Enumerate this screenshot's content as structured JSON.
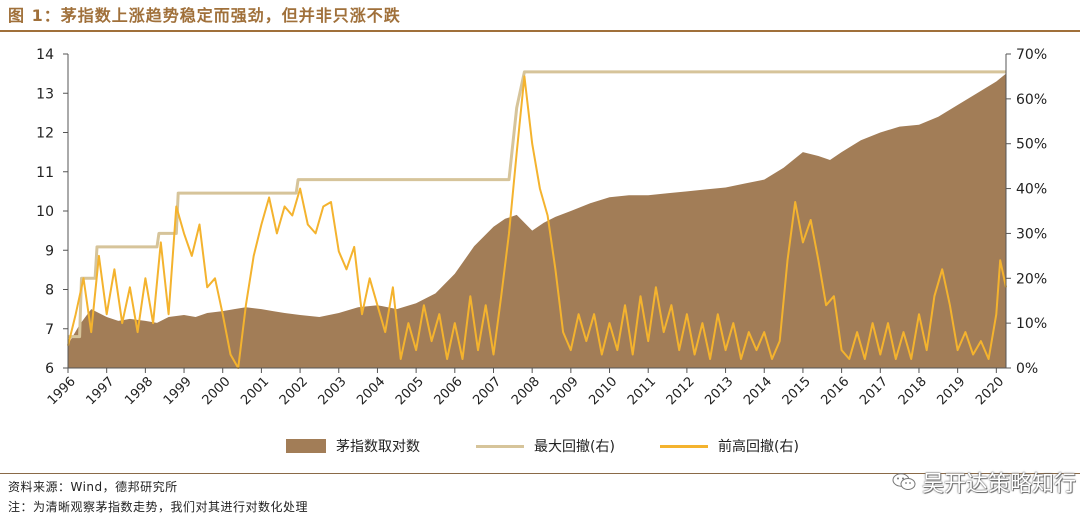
{
  "figure": {
    "title": "图 1：茅指数上涨趋势稳定而强劲，但并非只涨不跌"
  },
  "colors": {
    "accent": "#a0703a",
    "index_fill": "#a27d57",
    "max_drawdown": "#d6c49a",
    "prior_drawdown": "#f4b32e"
  },
  "chart_data": {
    "type": "area",
    "x_ticks": [
      "1996",
      "1997",
      "1998",
      "1999",
      "2000",
      "2001",
      "2002",
      "2003",
      "2004",
      "2005",
      "2006",
      "2007",
      "2008",
      "2009",
      "2010",
      "2011",
      "2012",
      "2013",
      "2014",
      "2015",
      "2016",
      "2017",
      "2018",
      "2019",
      "2020"
    ],
    "xlim": [
      1996.0,
      2020.25
    ],
    "left_axis": {
      "ylim": [
        6,
        14
      ],
      "ticks": [
        "6",
        "7",
        "8",
        "9",
        "10",
        "11",
        "12",
        "13",
        "14"
      ]
    },
    "right_axis": {
      "ylim": [
        0,
        70
      ],
      "ticks": [
        "0%",
        "10%",
        "20%",
        "30%",
        "40%",
        "50%",
        "60%",
        "70%"
      ]
    },
    "series": [
      {
        "name": "茅指数取对数",
        "type": "area",
        "axis": "left",
        "points": [
          [
            1996.0,
            6.6
          ],
          [
            1996.3,
            7.1
          ],
          [
            1996.6,
            7.5
          ],
          [
            1997.0,
            7.3
          ],
          [
            1997.3,
            7.2
          ],
          [
            1997.6,
            7.25
          ],
          [
            1998.0,
            7.2
          ],
          [
            1998.3,
            7.15
          ],
          [
            1998.6,
            7.3
          ],
          [
            1999.0,
            7.35
          ],
          [
            1999.3,
            7.3
          ],
          [
            1999.6,
            7.4
          ],
          [
            2000.0,
            7.45
          ],
          [
            2000.3,
            7.5
          ],
          [
            2000.6,
            7.55
          ],
          [
            2001.0,
            7.5
          ],
          [
            2001.3,
            7.45
          ],
          [
            2001.6,
            7.4
          ],
          [
            2002.0,
            7.35
          ],
          [
            2002.5,
            7.3
          ],
          [
            2003.0,
            7.4
          ],
          [
            2003.5,
            7.55
          ],
          [
            2004.0,
            7.6
          ],
          [
            2004.5,
            7.5
          ],
          [
            2005.0,
            7.65
          ],
          [
            2005.5,
            7.9
          ],
          [
            2006.0,
            8.4
          ],
          [
            2006.5,
            9.1
          ],
          [
            2007.0,
            9.6
          ],
          [
            2007.3,
            9.8
          ],
          [
            2007.6,
            9.9
          ],
          [
            2008.0,
            9.5
          ],
          [
            2008.3,
            9.7
          ],
          [
            2008.6,
            9.85
          ],
          [
            2009.0,
            10.0
          ],
          [
            2009.5,
            10.2
          ],
          [
            2010.0,
            10.35
          ],
          [
            2010.5,
            10.4
          ],
          [
            2011.0,
            10.4
          ],
          [
            2011.5,
            10.45
          ],
          [
            2012.0,
            10.5
          ],
          [
            2012.5,
            10.55
          ],
          [
            2013.0,
            10.6
          ],
          [
            2013.5,
            10.7
          ],
          [
            2014.0,
            10.8
          ],
          [
            2014.5,
            11.1
          ],
          [
            2015.0,
            11.5
          ],
          [
            2015.4,
            11.4
          ],
          [
            2015.7,
            11.3
          ],
          [
            2016.0,
            11.5
          ],
          [
            2016.5,
            11.8
          ],
          [
            2017.0,
            12.0
          ],
          [
            2017.5,
            12.15
          ],
          [
            2018.0,
            12.2
          ],
          [
            2018.5,
            12.4
          ],
          [
            2019.0,
            12.7
          ],
          [
            2019.5,
            13.0
          ],
          [
            2020.0,
            13.3
          ],
          [
            2020.25,
            13.5
          ]
        ]
      },
      {
        "name": "最大回撤(右)",
        "type": "line",
        "axis": "right",
        "points": [
          [
            1996.0,
            7
          ],
          [
            1996.3,
            7
          ],
          [
            1996.35,
            20
          ],
          [
            1996.7,
            20
          ],
          [
            1996.75,
            27
          ],
          [
            1998.3,
            27
          ],
          [
            1998.35,
            30
          ],
          [
            1998.8,
            30
          ],
          [
            1998.85,
            39
          ],
          [
            2001.9,
            39
          ],
          [
            2001.95,
            42
          ],
          [
            2007.4,
            42
          ],
          [
            2007.6,
            58
          ],
          [
            2007.8,
            66
          ],
          [
            2020.25,
            66
          ]
        ]
      },
      {
        "name": "前高回撤(右)",
        "type": "line",
        "axis": "right",
        "points": [
          [
            1996.0,
            5
          ],
          [
            1996.2,
            12
          ],
          [
            1996.4,
            20
          ],
          [
            1996.6,
            8
          ],
          [
            1996.8,
            25
          ],
          [
            1997.0,
            12
          ],
          [
            1997.2,
            22
          ],
          [
            1997.4,
            10
          ],
          [
            1997.6,
            18
          ],
          [
            1997.8,
            8
          ],
          [
            1998.0,
            20
          ],
          [
            1998.2,
            10
          ],
          [
            1998.4,
            28
          ],
          [
            1998.6,
            12
          ],
          [
            1998.8,
            36
          ],
          [
            1999.0,
            30
          ],
          [
            1999.2,
            25
          ],
          [
            1999.4,
            32
          ],
          [
            1999.6,
            18
          ],
          [
            1999.8,
            20
          ],
          [
            2000.0,
            12
          ],
          [
            2000.2,
            3
          ],
          [
            2000.4,
            0
          ],
          [
            2000.6,
            14
          ],
          [
            2000.8,
            25
          ],
          [
            2001.0,
            32
          ],
          [
            2001.2,
            38
          ],
          [
            2001.4,
            30
          ],
          [
            2001.6,
            36
          ],
          [
            2001.8,
            34
          ],
          [
            2002.0,
            40
          ],
          [
            2002.2,
            32
          ],
          [
            2002.4,
            30
          ],
          [
            2002.6,
            36
          ],
          [
            2002.8,
            37
          ],
          [
            2003.0,
            26
          ],
          [
            2003.2,
            22
          ],
          [
            2003.4,
            27
          ],
          [
            2003.6,
            12
          ],
          [
            2003.8,
            20
          ],
          [
            2004.0,
            14
          ],
          [
            2004.2,
            8
          ],
          [
            2004.4,
            18
          ],
          [
            2004.6,
            2
          ],
          [
            2004.8,
            10
          ],
          [
            2005.0,
            4
          ],
          [
            2005.2,
            14
          ],
          [
            2005.4,
            6
          ],
          [
            2005.6,
            12
          ],
          [
            2005.8,
            2
          ],
          [
            2006.0,
            10
          ],
          [
            2006.2,
            2
          ],
          [
            2006.4,
            16
          ],
          [
            2006.6,
            4
          ],
          [
            2006.8,
            14
          ],
          [
            2007.0,
            3
          ],
          [
            2007.2,
            16
          ],
          [
            2007.4,
            30
          ],
          [
            2007.6,
            48
          ],
          [
            2007.8,
            65
          ],
          [
            2008.0,
            50
          ],
          [
            2008.2,
            40
          ],
          [
            2008.4,
            34
          ],
          [
            2008.6,
            22
          ],
          [
            2008.8,
            8
          ],
          [
            2009.0,
            4
          ],
          [
            2009.2,
            12
          ],
          [
            2009.4,
            6
          ],
          [
            2009.6,
            12
          ],
          [
            2009.8,
            3
          ],
          [
            2010.0,
            10
          ],
          [
            2010.2,
            4
          ],
          [
            2010.4,
            14
          ],
          [
            2010.6,
            3
          ],
          [
            2010.8,
            16
          ],
          [
            2011.0,
            6
          ],
          [
            2011.2,
            18
          ],
          [
            2011.4,
            8
          ],
          [
            2011.6,
            14
          ],
          [
            2011.8,
            4
          ],
          [
            2012.0,
            12
          ],
          [
            2012.2,
            3
          ],
          [
            2012.4,
            10
          ],
          [
            2012.6,
            2
          ],
          [
            2012.8,
            12
          ],
          [
            2013.0,
            4
          ],
          [
            2013.2,
            10
          ],
          [
            2013.4,
            2
          ],
          [
            2013.6,
            8
          ],
          [
            2013.8,
            4
          ],
          [
            2014.0,
            8
          ],
          [
            2014.2,
            2
          ],
          [
            2014.4,
            6
          ],
          [
            2014.6,
            24
          ],
          [
            2014.8,
            37
          ],
          [
            2015.0,
            28
          ],
          [
            2015.2,
            33
          ],
          [
            2015.4,
            24
          ],
          [
            2015.6,
            14
          ],
          [
            2015.8,
            16
          ],
          [
            2016.0,
            4
          ],
          [
            2016.2,
            2
          ],
          [
            2016.4,
            8
          ],
          [
            2016.6,
            2
          ],
          [
            2016.8,
            10
          ],
          [
            2017.0,
            3
          ],
          [
            2017.2,
            10
          ],
          [
            2017.4,
            2
          ],
          [
            2017.6,
            8
          ],
          [
            2017.8,
            2
          ],
          [
            2018.0,
            12
          ],
          [
            2018.2,
            4
          ],
          [
            2018.4,
            16
          ],
          [
            2018.6,
            22
          ],
          [
            2018.8,
            14
          ],
          [
            2019.0,
            4
          ],
          [
            2019.2,
            8
          ],
          [
            2019.4,
            3
          ],
          [
            2019.6,
            6
          ],
          [
            2019.8,
            2
          ],
          [
            2020.0,
            12
          ],
          [
            2020.1,
            24
          ],
          [
            2020.25,
            18
          ]
        ]
      }
    ]
  },
  "legend": {
    "index": "茅指数取对数",
    "max_dd": "最大回撤(右)",
    "prior_dd": "前高回撤(右)"
  },
  "notes": {
    "source": "资料来源：Wind，德邦研究所",
    "note": "注：为清晰观察茅指数走势，我们对其进行对数化处理"
  },
  "brand": {
    "text": "吴开达策略知行",
    "icon": "wechat-icon"
  }
}
